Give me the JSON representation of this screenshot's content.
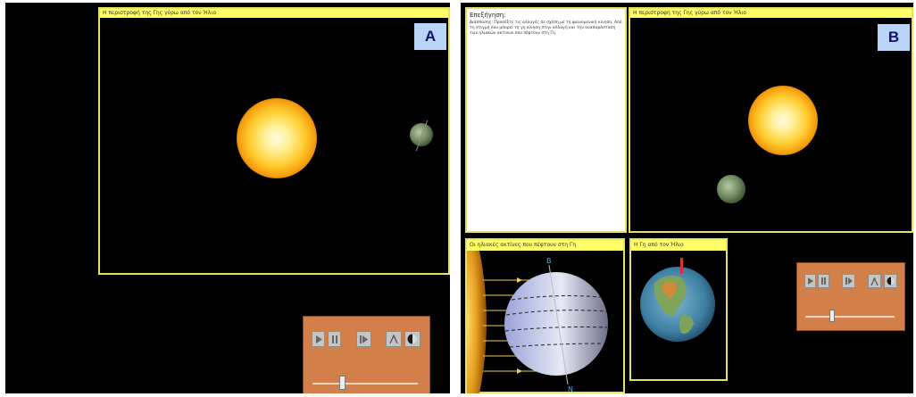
{
  "panel_a": {
    "badge": "A",
    "sim_title": "Η περιστροφή της Γης γύρω από τον Ήλιο"
  },
  "panel_b": {
    "badge": "B",
    "explanation_title": "Επεξήγηση:",
    "explanation_text": "Διάσπασης: Προσέξτε τις αλλαγές σε σχέση με τη φαινομενική κίνηση. Από τη στιγμή που μπορεί τη γη κίνηση στην αλλαγή και την αναπαράσταση των ηλιακών ακτίνων που πέφτουν στη Γη.",
    "sim_title": "Η περιστροφή της Γης γύρω από τον Ήλιο",
    "rays_title": "Οι ηλιακές ακτίνες που πέφτουν στη Γη",
    "globe_title": "Η Γη από τον Ήλιο",
    "north_label": "Β",
    "south_label": "Ν"
  },
  "controls": {
    "play_icon": "play-icon",
    "pause_icon": "pause-icon",
    "step_icon": "step-forward-icon",
    "axis_icon": "axis-icon",
    "moon_icon": "moon-phase-icon",
    "speed_slider_value": 0.3
  },
  "colors": {
    "frame_border": "#e8e060",
    "title_bar": "#ffff66",
    "control_panel": "#d37f4a",
    "badge_bg": "#b9d4f6"
  }
}
